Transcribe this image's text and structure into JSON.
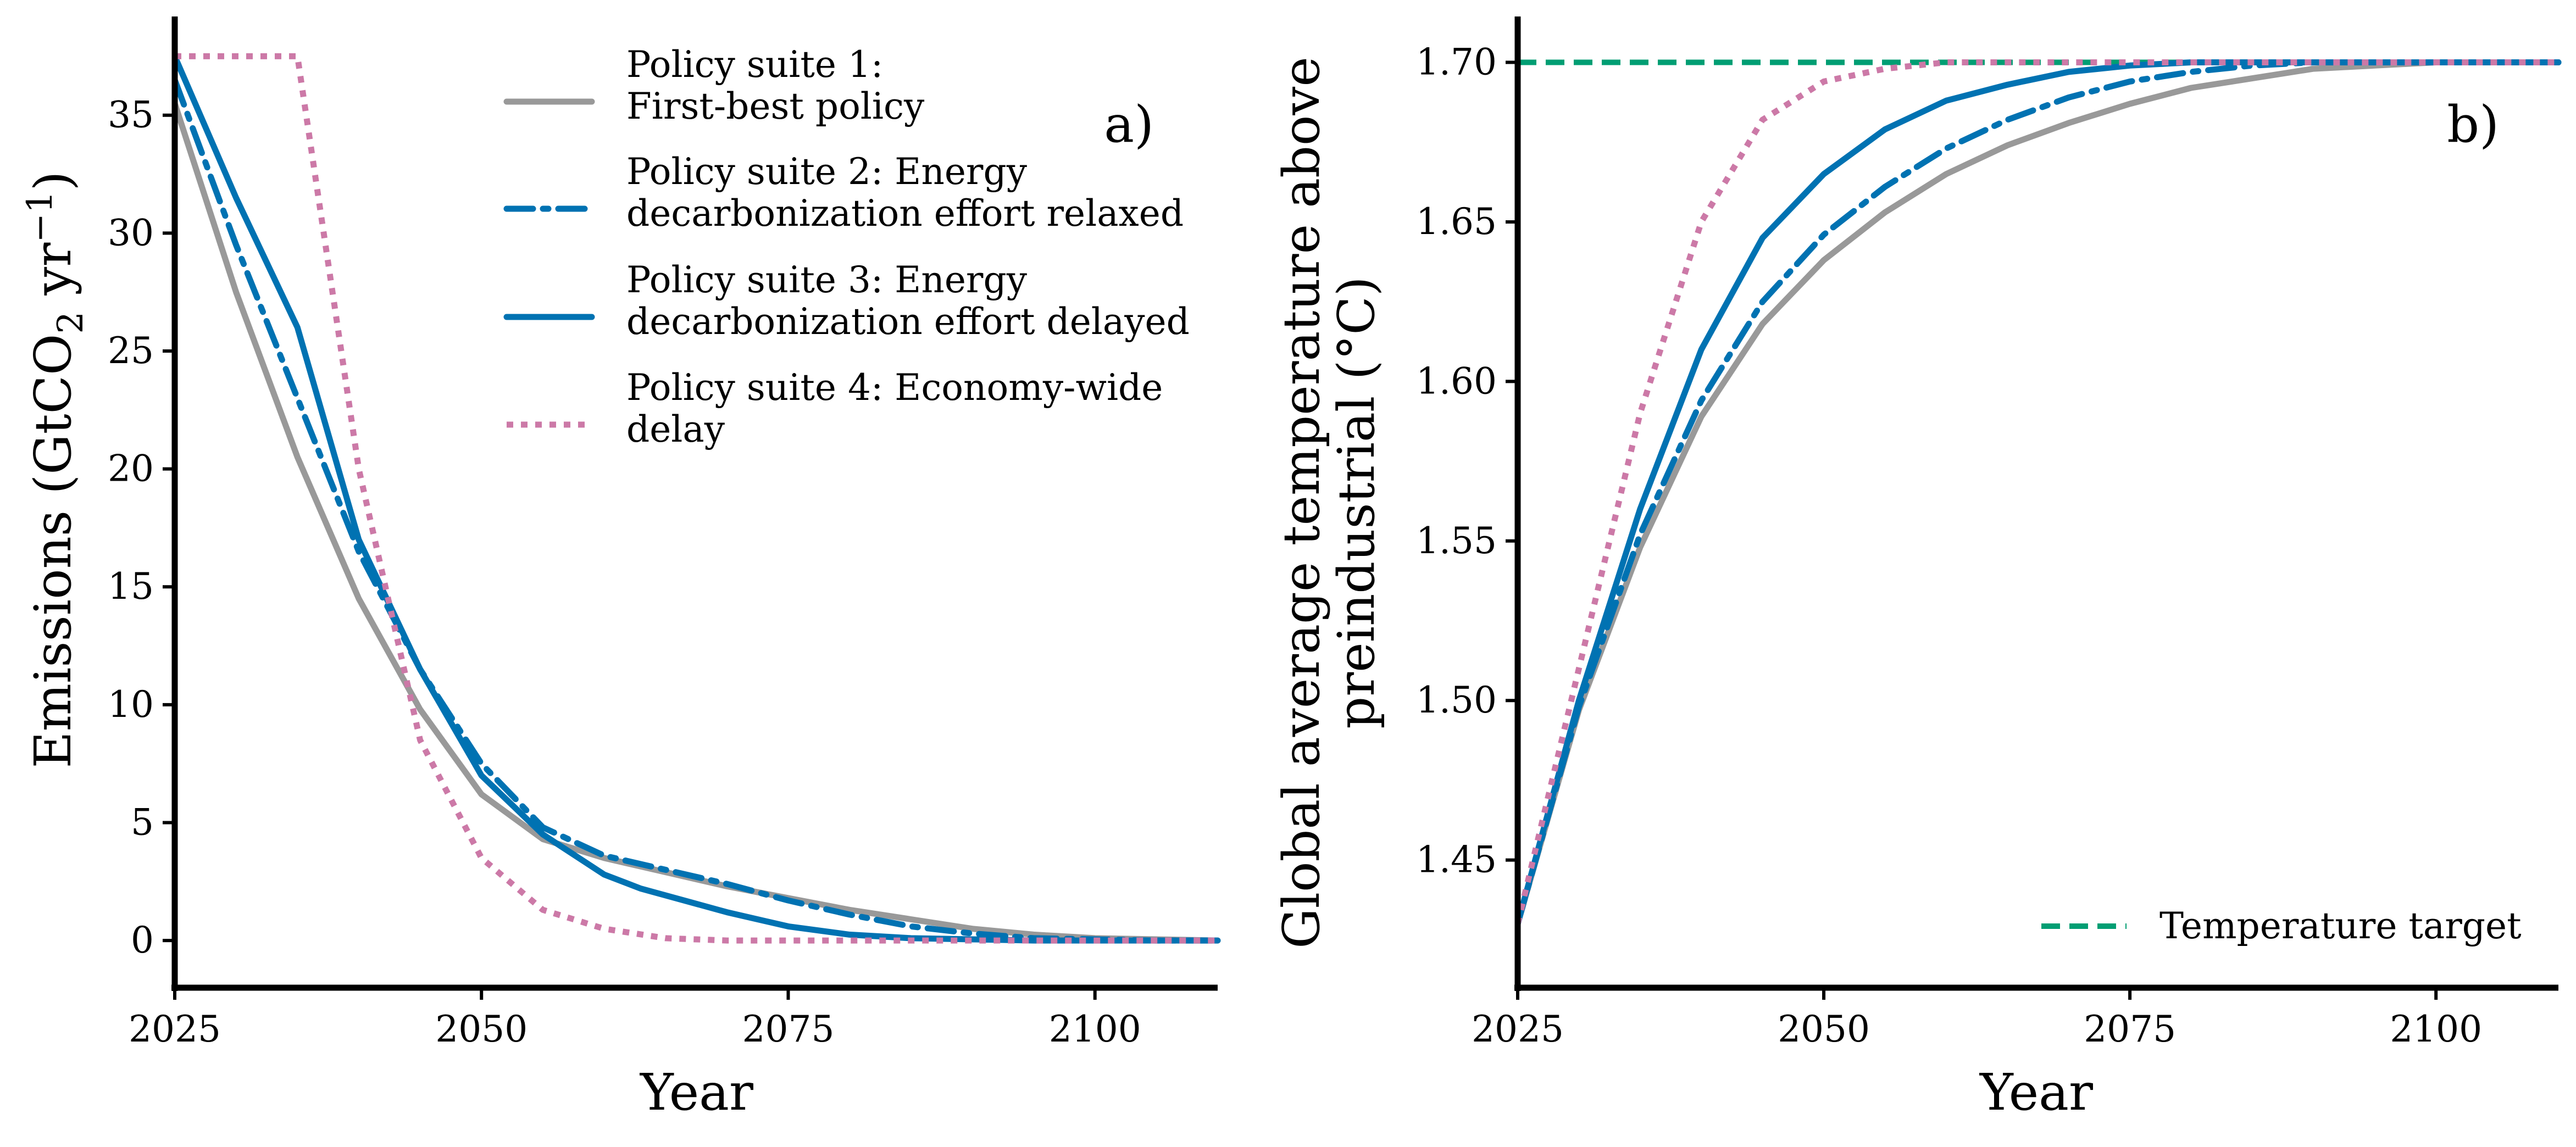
{
  "colors": {
    "suite1": "#999999",
    "suite2": "#0072b2",
    "suite3": "#0072b2",
    "suite4": "#cc79a7",
    "target": "#009e73",
    "axis": "#000000"
  },
  "chart_data": [
    {
      "type": "line",
      "panel_label": "a)",
      "xlabel": "Year",
      "ylabel_main": "Emissions (GtCO",
      "ylabel_sub": "2",
      "ylabel_mid": " yr",
      "ylabel_sup": "−1",
      "ylabel_end": ")",
      "xlim": [
        2025,
        2110
      ],
      "ylim": [
        -2,
        39
      ],
      "xticks": [
        2025,
        2050,
        2075,
        2100
      ],
      "xtick_labels": [
        "2025",
        "2050",
        "2075",
        "2100"
      ],
      "yticks": [
        0,
        5,
        10,
        15,
        20,
        25,
        30,
        35
      ],
      "ytick_labels": [
        "0",
        "5",
        "10",
        "15",
        "20",
        "25",
        "30",
        "35"
      ],
      "grid": false,
      "legend_position": "top-right",
      "series": [
        {
          "key": "suite1",
          "style": "solid",
          "legend_lines": [
            "Policy suite 1:",
            "First-best policy"
          ],
          "x": [
            2025,
            2030,
            2035,
            2040,
            2045,
            2050,
            2055,
            2060,
            2065,
            2070,
            2075,
            2080,
            2085,
            2090,
            2095,
            2100,
            2105,
            2110
          ],
          "y": [
            35.5,
            27.5,
            20.5,
            14.5,
            9.8,
            6.2,
            4.3,
            3.5,
            2.9,
            2.3,
            1.8,
            1.3,
            0.9,
            0.5,
            0.25,
            0.1,
            0.05,
            0.0
          ]
        },
        {
          "key": "suite2",
          "style": "dashdot",
          "legend_lines": [
            "Policy suite 2: Energy",
            "decarbonization effort relaxed"
          ],
          "x": [
            2025,
            2030,
            2035,
            2040,
            2045,
            2050,
            2055,
            2060,
            2065,
            2070,
            2075,
            2080,
            2085,
            2090,
            2095,
            2100,
            2105,
            2110
          ],
          "y": [
            36.5,
            29.5,
            23.0,
            16.5,
            11.5,
            7.5,
            4.8,
            3.6,
            3.0,
            2.4,
            1.7,
            1.1,
            0.6,
            0.3,
            0.1,
            0.05,
            0.0,
            0.0
          ]
        },
        {
          "key": "suite3",
          "style": "solid",
          "legend_lines": [
            "Policy suite 3: Energy",
            "decarbonization effort delayed"
          ],
          "x": [
            2025,
            2030,
            2035,
            2040,
            2045,
            2050,
            2055,
            2060,
            2063,
            2070,
            2075,
            2080,
            2085,
            2090,
            2095,
            2100,
            2105,
            2110
          ],
          "y": [
            37.5,
            31.5,
            26.0,
            17.0,
            11.5,
            7.0,
            4.5,
            2.8,
            2.2,
            1.2,
            0.6,
            0.25,
            0.1,
            0.05,
            0.0,
            0.0,
            0.0,
            0.0
          ]
        },
        {
          "key": "suite4",
          "style": "dotted",
          "legend_lines": [
            "Policy suite 4: Economy-wide",
            "delay"
          ],
          "x": [
            2025,
            2035,
            2040,
            2045,
            2050,
            2055,
            2060,
            2065,
            2070,
            2075,
            2080,
            2085,
            2090,
            2095,
            2100,
            2105,
            2110
          ],
          "y": [
            37.5,
            37.5,
            20.0,
            8.5,
            3.5,
            1.3,
            0.5,
            0.1,
            0.0,
            0.0,
            0.0,
            0.0,
            0.0,
            0.0,
            0.0,
            0.0,
            0.0
          ]
        }
      ]
    },
    {
      "type": "line",
      "panel_label": "b)",
      "xlabel": "Year",
      "ylabel_lines": [
        "Global average temperature above",
        "preindustrial (°C)"
      ],
      "xlim": [
        2025,
        2110
      ],
      "ylim": [
        1.41,
        1.713
      ],
      "xticks": [
        2025,
        2050,
        2075,
        2100
      ],
      "xtick_labels": [
        "2025",
        "2050",
        "2075",
        "2100"
      ],
      "yticks": [
        1.45,
        1.5,
        1.55,
        1.6,
        1.65,
        1.7
      ],
      "ytick_labels": [
        "1.45",
        "1.50",
        "1.55",
        "1.60",
        "1.65",
        "1.70"
      ],
      "grid": false,
      "legend_position": "bottom-right",
      "target": {
        "value": 1.7,
        "label": "Temperature target"
      },
      "series": [
        {
          "key": "suite1",
          "style": "solid",
          "x": [
            2025,
            2030,
            2035,
            2040,
            2045,
            2050,
            2055,
            2060,
            2065,
            2070,
            2075,
            2080,
            2085,
            2090,
            2095,
            2100,
            2110
          ],
          "y": [
            1.43,
            1.497,
            1.548,
            1.589,
            1.618,
            1.638,
            1.653,
            1.665,
            1.674,
            1.681,
            1.687,
            1.692,
            1.695,
            1.698,
            1.699,
            1.7,
            1.7
          ]
        },
        {
          "key": "suite2",
          "style": "dashdot",
          "x": [
            2025,
            2030,
            2035,
            2040,
            2045,
            2050,
            2055,
            2060,
            2065,
            2070,
            2075,
            2080,
            2085,
            2090,
            2095,
            2100,
            2110
          ],
          "y": [
            1.43,
            1.498,
            1.552,
            1.594,
            1.625,
            1.646,
            1.661,
            1.673,
            1.682,
            1.689,
            1.694,
            1.697,
            1.699,
            1.7,
            1.7,
            1.7,
            1.7
          ]
        },
        {
          "key": "suite3",
          "style": "solid",
          "x": [
            2025,
            2030,
            2035,
            2040,
            2045,
            2050,
            2055,
            2060,
            2065,
            2070,
            2075,
            2080,
            2085,
            2090,
            2095,
            2100,
            2110
          ],
          "y": [
            1.43,
            1.5,
            1.56,
            1.61,
            1.645,
            1.665,
            1.679,
            1.688,
            1.693,
            1.697,
            1.699,
            1.7,
            1.7,
            1.7,
            1.7,
            1.7,
            1.7
          ]
        },
        {
          "key": "suite4",
          "style": "dotted",
          "x": [
            2025,
            2030,
            2035,
            2040,
            2045,
            2050,
            2055,
            2060,
            2065,
            2070,
            2075,
            2080,
            2090,
            2100,
            2110
          ],
          "y": [
            1.43,
            1.51,
            1.59,
            1.65,
            1.682,
            1.694,
            1.698,
            1.7,
            1.7,
            1.7,
            1.7,
            1.7,
            1.7,
            1.7,
            1.7
          ]
        }
      ]
    }
  ]
}
